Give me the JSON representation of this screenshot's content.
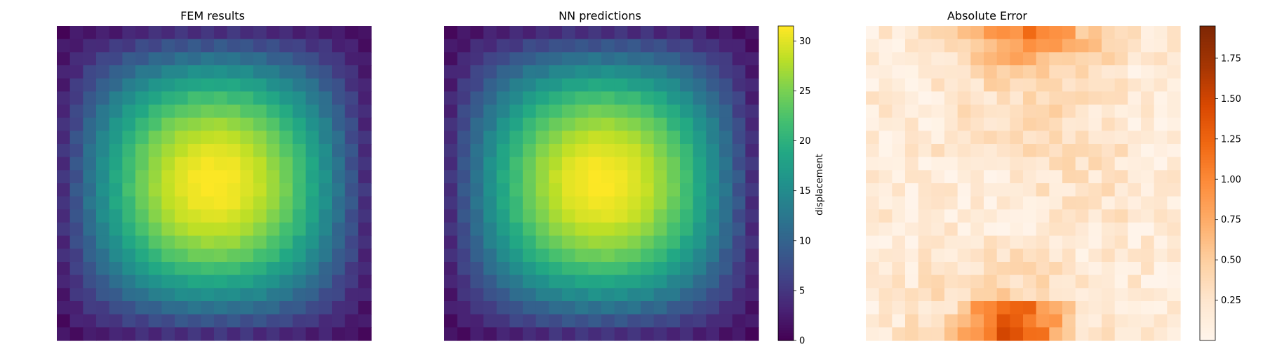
{
  "chart_data": [
    {
      "type": "heatmap",
      "title": "FEM results",
      "grid_size": [
        24,
        24
      ],
      "cmap": "viridis",
      "value_range": [
        0,
        31.5
      ],
      "field_model": "approx. product of half-sines: z = 0.6 + 31*sin(pi*(c+1)/25)*sin(pi*(r+1)/25) plus small checkerboard ripple near the edges"
    },
    {
      "type": "heatmap",
      "title": "NN predictions",
      "grid_size": [
        24,
        24
      ],
      "cmap": "viridis",
      "value_range": [
        0,
        31.5
      ],
      "colorbar": {
        "label": "displacement",
        "ticks": [
          "0",
          "5",
          "10",
          "15",
          "20",
          "25",
          "30"
        ],
        "tick_values": [
          0,
          5,
          10,
          15,
          20,
          25,
          30
        ]
      }
    },
    {
      "type": "heatmap",
      "title": "Absolute Error",
      "grid_size": [
        24,
        24
      ],
      "cmap": "Oranges",
      "value_range": [
        0,
        1.95
      ],
      "colorbar": {
        "label": "",
        "ticks": [
          "0.25",
          "0.50",
          "0.75",
          "1.00",
          "1.25",
          "1.50",
          "1.75"
        ],
        "tick_values": [
          0.25,
          0.5,
          0.75,
          1.0,
          1.25,
          1.5,
          1.75
        ]
      },
      "notes": "largest errors (about 1.7-1.9) in the bottom rows near the center and along the top rows center; low errors (<0.3) in the middle band"
    }
  ]
}
